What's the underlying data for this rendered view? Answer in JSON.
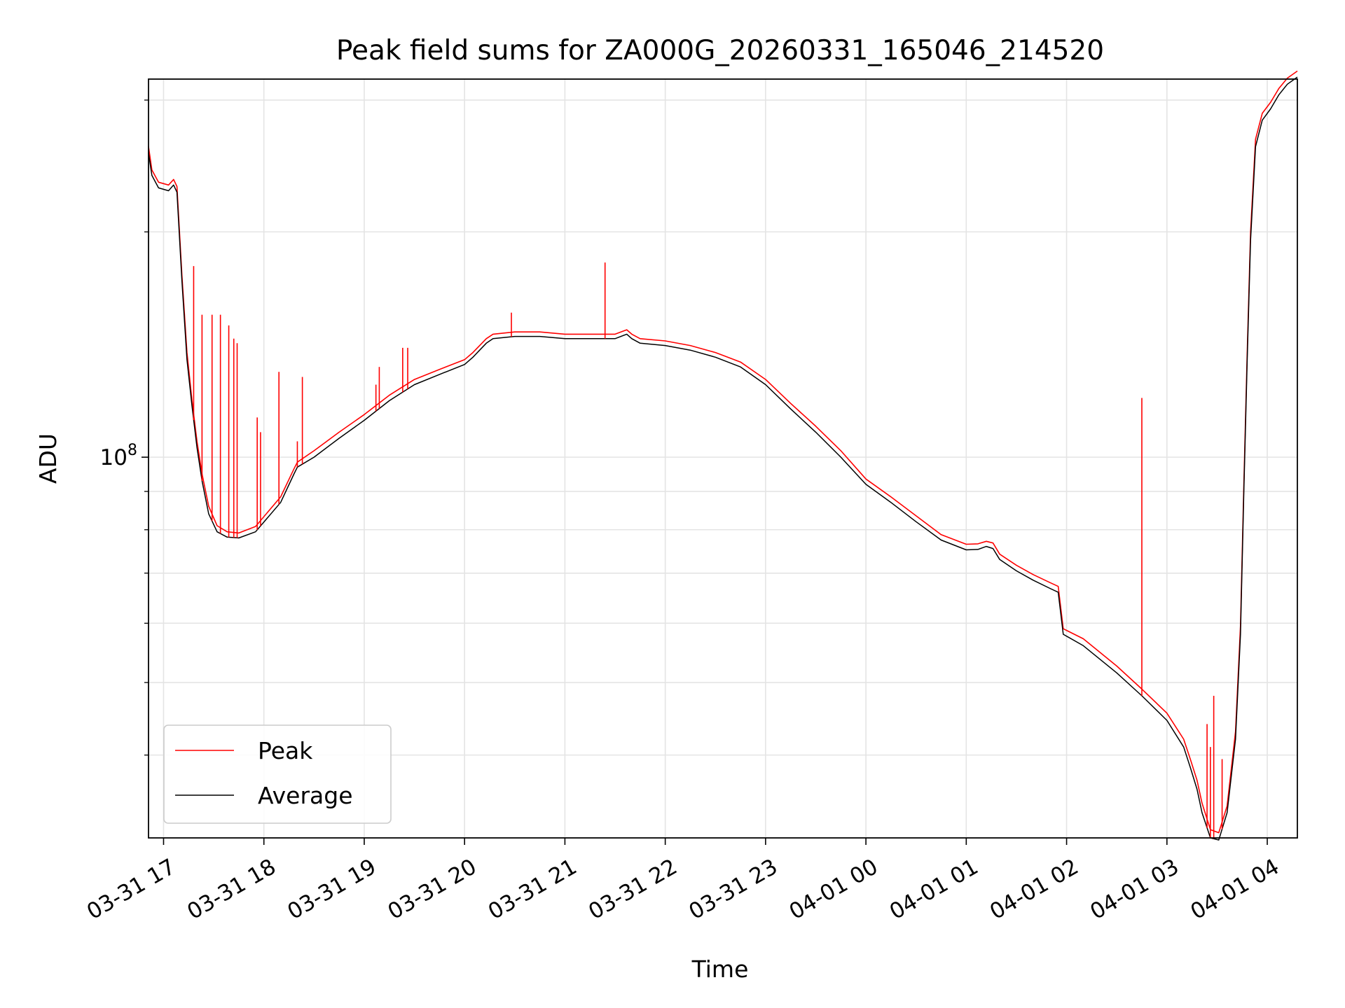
{
  "chart_data": {
    "type": "line",
    "title": "Peak field sums for ZA000G_20260331_165046_214520",
    "xlabel": "Time",
    "ylabel": "ADU",
    "yscale": "log",
    "grid": true,
    "legend_position": "lower-left",
    "xlim": [
      "2026-03-31 16:51",
      "2026-04-01 04:18"
    ],
    "ylim": [
      31000000.0,
      320000000.0
    ],
    "x_ticks": [
      {
        "value": "2026-03-31 17:00",
        "label": "03-31 17"
      },
      {
        "value": "2026-03-31 18:00",
        "label": "03-31 18"
      },
      {
        "value": "2026-03-31 19:00",
        "label": "03-31 19"
      },
      {
        "value": "2026-03-31 20:00",
        "label": "03-31 20"
      },
      {
        "value": "2026-03-31 21:00",
        "label": "03-31 21"
      },
      {
        "value": "2026-03-31 22:00",
        "label": "03-31 22"
      },
      {
        "value": "2026-03-31 23:00",
        "label": "03-31 23"
      },
      {
        "value": "2026-04-01 00:00",
        "label": "04-01 00"
      },
      {
        "value": "2026-04-01 01:00",
        "label": "04-01 01"
      },
      {
        "value": "2026-04-01 02:00",
        "label": "04-01 02"
      },
      {
        "value": "2026-04-01 03:00",
        "label": "04-01 03"
      },
      {
        "value": "2026-04-01 04:00",
        "label": "04-01 04"
      }
    ],
    "y_major_ticks": [
      {
        "value": 100000000.0,
        "base": "10",
        "exp": "8"
      }
    ],
    "y_minor_ticks": [
      40000000.0,
      50000000.0,
      60000000.0,
      70000000.0,
      80000000.0,
      90000000.0,
      200000000.0,
      300000000.0
    ],
    "series": [
      {
        "name": "Average",
        "color": "#000000",
        "x": [
          "2026-03-31 16:51",
          "2026-03-31 16:53",
          "2026-03-31 16:57",
          "2026-03-31 17:03",
          "2026-03-31 17:06",
          "2026-03-31 17:08",
          "2026-03-31 17:11",
          "2026-03-31 17:14",
          "2026-03-31 17:17",
          "2026-03-31 17:20",
          "2026-03-31 17:23",
          "2026-03-31 17:27",
          "2026-03-31 17:32",
          "2026-03-31 17:38",
          "2026-03-31 17:45",
          "2026-03-31 17:55",
          "2026-03-31 18:10",
          "2026-03-31 18:18",
          "2026-03-31 18:20",
          "2026-03-31 18:30",
          "2026-03-31 18:45",
          "2026-03-31 19:00",
          "2026-03-31 19:15",
          "2026-03-31 19:30",
          "2026-03-31 19:45",
          "2026-03-31 20:00",
          "2026-03-31 20:05",
          "2026-03-31 20:13",
          "2026-03-31 20:17",
          "2026-03-31 20:30",
          "2026-03-31 20:45",
          "2026-03-31 21:00",
          "2026-03-31 21:15",
          "2026-03-31 21:30",
          "2026-03-31 21:37",
          "2026-03-31 21:40",
          "2026-03-31 21:45",
          "2026-03-31 22:00",
          "2026-03-31 22:15",
          "2026-03-31 22:30",
          "2026-03-31 22:45",
          "2026-03-31 23:00",
          "2026-03-31 23:15",
          "2026-03-31 23:30",
          "2026-03-31 23:45",
          "2026-04-01 00:00",
          "2026-04-01 00:15",
          "2026-04-01 00:30",
          "2026-04-01 00:45",
          "2026-04-01 01:00",
          "2026-04-01 01:07",
          "2026-04-01 01:12",
          "2026-04-01 01:16",
          "2026-04-01 01:20",
          "2026-04-01 01:30",
          "2026-04-01 01:40",
          "2026-04-01 01:50",
          "2026-04-01 01:55",
          "2026-04-01 01:58",
          "2026-04-01 02:10",
          "2026-04-01 02:30",
          "2026-04-01 02:45",
          "2026-04-01 03:00",
          "2026-04-01 03:10",
          "2026-04-01 03:14",
          "2026-04-01 03:18",
          "2026-04-01 03:21",
          "2026-04-01 03:26",
          "2026-04-01 03:31",
          "2026-04-01 03:36",
          "2026-04-01 03:41",
          "2026-04-01 03:44",
          "2026-04-01 03:46",
          "2026-04-01 03:48",
          "2026-04-01 03:50",
          "2026-04-01 03:53",
          "2026-04-01 03:57",
          "2026-04-01 04:02",
          "2026-04-01 04:07",
          "2026-04-01 04:12",
          "2026-04-01 04:18"
        ],
        "y": [
          255000000.0,
          238000000.0,
          229000000.0,
          227000000.0,
          231000000.0,
          226000000.0,
          172000000.0,
          135000000.0,
          117000000.0,
          103000000.0,
          93000000.0,
          84000000.0,
          79500000.0,
          78200000.0,
          78000000.0,
          79500000.0,
          87000000.0,
          95000000.0,
          97000000.0,
          100000000.0,
          106000000.0,
          112000000.0,
          119000000.0,
          125000000.0,
          129000000.0,
          133000000.0,
          136000000.0,
          142000000.0,
          144000000.0,
          145000000.0,
          145000000.0,
          144000000.0,
          144000000.0,
          144000000.0,
          146000000.0,
          144000000.0,
          142000000.0,
          141000000.0,
          139000000.0,
          136000000.0,
          132000000.0,
          125000000.0,
          116000000.0,
          108000000.0,
          100000000.0,
          92000000.0,
          87000000.0,
          82000000.0,
          77500000.0,
          75200000.0,
          75300000.0,
          76000000.0,
          75500000.0,
          73000000.0,
          70500000.0,
          68500000.0,
          66800000.0,
          66000000.0,
          58000000.0,
          56000000.0,
          51500000.0,
          48000000.0,
          44500000.0,
          41000000.0,
          38500000.0,
          36000000.0,
          33500000.0,
          31000000.0,
          30800000.0,
          33500000.0,
          42000000.0,
          58000000.0,
          90000000.0,
          135000000.0,
          195000000.0,
          260000000.0,
          282000000.0,
          292000000.0,
          305000000.0,
          315000000.0,
          322000000.0
        ]
      },
      {
        "name": "Peak",
        "color": "#ff0000",
        "x": [
          "2026-03-31 16:51",
          "2026-03-31 16:53",
          "2026-03-31 16:57",
          "2026-03-31 17:03",
          "2026-03-31 17:06",
          "2026-03-31 17:08",
          "2026-03-31 17:11",
          "2026-03-31 17:14",
          "2026-03-31 17:17",
          "2026-03-31 17:20",
          "2026-03-31 17:23",
          "2026-03-31 17:27",
          "2026-03-31 17:32",
          "2026-03-31 17:38",
          "2026-03-31 17:45",
          "2026-03-31 17:55",
          "2026-03-31 18:10",
          "2026-03-31 18:18",
          "2026-03-31 18:20",
          "2026-03-31 18:30",
          "2026-03-31 18:45",
          "2026-03-31 19:00",
          "2026-03-31 19:15",
          "2026-03-31 19:30",
          "2026-03-31 19:45",
          "2026-03-31 20:00",
          "2026-03-31 20:05",
          "2026-03-31 20:13",
          "2026-03-31 20:17",
          "2026-03-31 20:30",
          "2026-03-31 20:45",
          "2026-03-31 21:00",
          "2026-03-31 21:15",
          "2026-03-31 21:30",
          "2026-03-31 21:37",
          "2026-03-31 21:40",
          "2026-03-31 21:45",
          "2026-03-31 22:00",
          "2026-03-31 22:15",
          "2026-03-31 22:30",
          "2026-03-31 22:45",
          "2026-03-31 23:00",
          "2026-03-31 23:15",
          "2026-03-31 23:30",
          "2026-03-31 23:45",
          "2026-04-01 00:00",
          "2026-04-01 00:15",
          "2026-04-01 00:30",
          "2026-04-01 00:45",
          "2026-04-01 01:00",
          "2026-04-01 01:07",
          "2026-04-01 01:12",
          "2026-04-01 01:16",
          "2026-04-01 01:20",
          "2026-04-01 01:30",
          "2026-04-01 01:40",
          "2026-04-01 01:50",
          "2026-04-01 01:55",
          "2026-04-01 01:58",
          "2026-04-01 02:10",
          "2026-04-01 02:30",
          "2026-04-01 02:45",
          "2026-04-01 03:00",
          "2026-04-01 03:10",
          "2026-04-01 03:14",
          "2026-04-01 03:18",
          "2026-04-01 03:21",
          "2026-04-01 03:26",
          "2026-04-01 03:31",
          "2026-04-01 03:36",
          "2026-04-01 03:41",
          "2026-04-01 03:44",
          "2026-04-01 03:46",
          "2026-04-01 03:48",
          "2026-04-01 03:50",
          "2026-04-01 03:53",
          "2026-04-01 03:57",
          "2026-04-01 04:02",
          "2026-04-01 04:07",
          "2026-04-01 04:12",
          "2026-04-01 04:18"
        ],
        "y": [
          260000000.0,
          242000000.0,
          233000000.0,
          231000000.0,
          235000000.0,
          230000000.0,
          175000000.0,
          138000000.0,
          119000000.0,
          105000000.0,
          95000000.0,
          86000000.0,
          81000000.0,
          79500000.0,
          79200000.0,
          80800000.0,
          88500000.0,
          96500000.0,
          98500000.0,
          102000000.0,
          108000000.0,
          114000000.0,
          121000000.0,
          127000000.0,
          131000000.0,
          135000000.0,
          138000000.0,
          144000000.0,
          146000000.0,
          147000000.0,
          147000000.0,
          146000000.0,
          146000000.0,
          146000000.0,
          148000000.0,
          146000000.0,
          144000000.0,
          143000000.0,
          141000000.0,
          138000000.0,
          134000000.0,
          127000000.0,
          118000000.0,
          110000000.0,
          102000000.0,
          93500000.0,
          88500000.0,
          83500000.0,
          78800000.0,
          76500000.0,
          76600000.0,
          77200000.0,
          76800000.0,
          74200000.0,
          71700000.0,
          69700000.0,
          68000000.0,
          67200000.0,
          59000000.0,
          57200000.0,
          52600000.0,
          49000000.0,
          45500000.0,
          42000000.0,
          39500000.0,
          37000000.0,
          34500000.0,
          31800000.0,
          31500000.0,
          34200000.0,
          43000000.0,
          59500000.0,
          92000000.0,
          138000000.0,
          200000000.0,
          266000000.0,
          288000000.0,
          298000000.0,
          311000000.0,
          321000000.0,
          328000000.0
        ]
      }
    ],
    "peak_spikes": {
      "x": [
        "2026-03-31 17:18",
        "2026-03-31 17:23",
        "2026-03-31 17:29",
        "2026-03-31 17:34",
        "2026-03-31 17:39",
        "2026-03-31 17:42",
        "2026-03-31 17:44",
        "2026-03-31 17:56",
        "2026-03-31 17:58",
        "2026-03-31 18:09",
        "2026-03-31 18:20",
        "2026-03-31 18:23",
        "2026-03-31 19:07",
        "2026-03-31 19:09",
        "2026-03-31 19:23",
        "2026-03-31 19:26",
        "2026-03-31 20:28",
        "2026-03-31 21:24",
        "2026-04-01 02:45",
        "2026-04-01 03:24",
        "2026-04-01 03:26",
        "2026-04-01 03:28",
        "2026-04-01 03:33"
      ],
      "y": [
        180000000.0,
        155000000.0,
        155000000.0,
        155000000.0,
        150000000.0,
        144000000.0,
        142000000.0,
        113000000.0,
        108000000.0,
        130000000.0,
        105000000.0,
        128000000.0,
        125000000.0,
        132000000.0,
        140000000.0,
        140000000.0,
        156000000.0,
        182000000.0,
        120000000.0,
        44000000.0,
        41000000.0,
        48000000.0,
        39500000.0
      ]
    },
    "legend": [
      {
        "name": "Peak",
        "color": "#ff0000"
      },
      {
        "name": "Average",
        "color": "#000000"
      }
    ]
  }
}
